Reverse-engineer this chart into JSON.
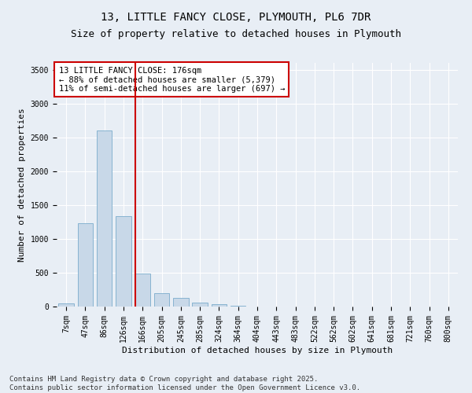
{
  "title_line1": "13, LITTLE FANCY CLOSE, PLYMOUTH, PL6 7DR",
  "title_line2": "Size of property relative to detached houses in Plymouth",
  "xlabel": "Distribution of detached houses by size in Plymouth",
  "ylabel": "Number of detached properties",
  "categories": [
    "7sqm",
    "47sqm",
    "86sqm",
    "126sqm",
    "166sqm",
    "205sqm",
    "245sqm",
    "285sqm",
    "324sqm",
    "364sqm",
    "404sqm",
    "443sqm",
    "483sqm",
    "522sqm",
    "562sqm",
    "602sqm",
    "641sqm",
    "681sqm",
    "721sqm",
    "760sqm",
    "800sqm"
  ],
  "values": [
    50,
    1230,
    2600,
    1340,
    490,
    200,
    130,
    55,
    30,
    10,
    5,
    3,
    2,
    1,
    1,
    0,
    0,
    0,
    0,
    0,
    0
  ],
  "bar_color": "#c8d8e8",
  "bar_edge_color": "#7aaccc",
  "vline_index": 4,
  "vline_color": "#cc0000",
  "annotation_text": "13 LITTLE FANCY CLOSE: 176sqm\n← 88% of detached houses are smaller (5,379)\n11% of semi-detached houses are larger (697) →",
  "annotation_box_color": "#ffffff",
  "annotation_box_edge": "#cc0000",
  "ylim": [
    0,
    3600
  ],
  "yticks": [
    0,
    500,
    1000,
    1500,
    2000,
    2500,
    3000,
    3500
  ],
  "bg_color": "#e8eef5",
  "plot_bg_color": "#e8eef5",
  "footer_text": "Contains HM Land Registry data © Crown copyright and database right 2025.\nContains public sector information licensed under the Open Government Licence v3.0.",
  "title_fontsize": 10,
  "subtitle_fontsize": 9,
  "axis_label_fontsize": 8,
  "tick_fontsize": 7,
  "annotation_fontsize": 7.5,
  "footer_fontsize": 6.5
}
